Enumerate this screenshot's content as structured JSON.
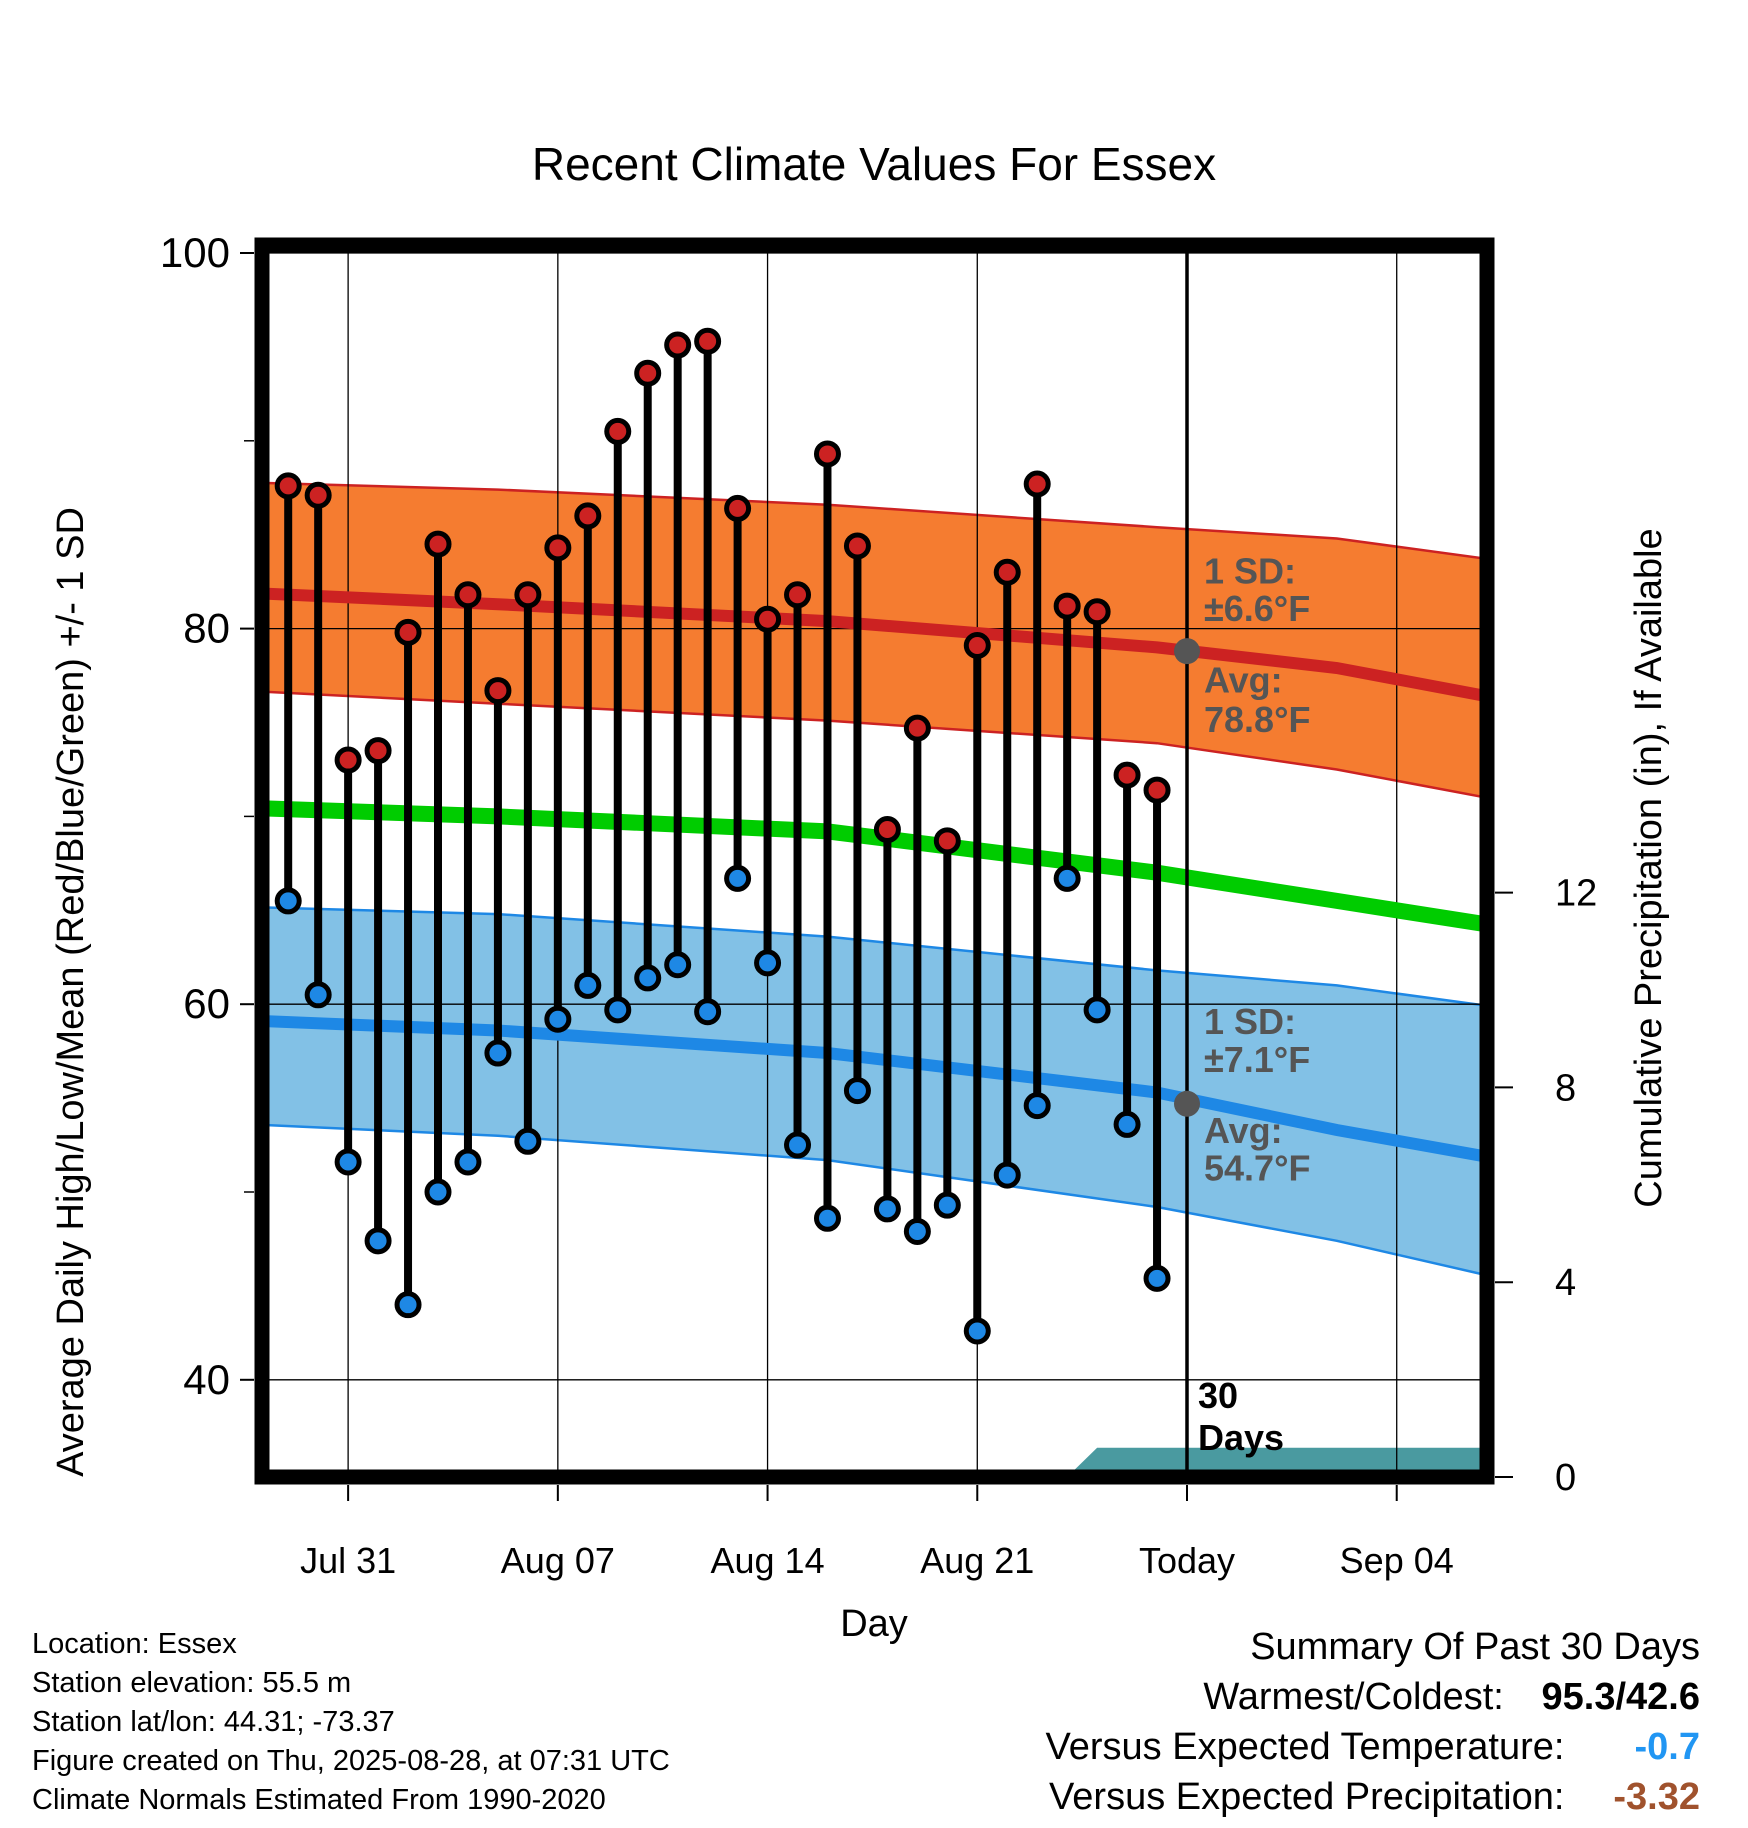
{
  "chart_data": {
    "type": "line",
    "title": "Recent Climate Values For Essex",
    "xlabel": "Day",
    "ylabel": "Average Daily High/Low/Mean (Red/Blue/Green) +/- 1 SD",
    "y2label": "Cumulative Precipitation (in), If Available",
    "ylim": [
      35,
      100
    ],
    "y2lim": [
      0,
      18.8
    ],
    "y_ticks": [
      40,
      60,
      80,
      100
    ],
    "y_minor_ticks": [
      50,
      70,
      90
    ],
    "y2_ticks": [
      0,
      4,
      8,
      12
    ],
    "x_range_days": [
      -34,
      11
    ],
    "x_ticks": [
      {
        "day": -28,
        "label": "Jul 31"
      },
      {
        "day": -21,
        "label": "Aug 07"
      },
      {
        "day": -14,
        "label": "Aug 14"
      },
      {
        "day": -7,
        "label": "Aug 21"
      },
      {
        "day": 0,
        "label": "Today"
      },
      {
        "day": 7,
        "label": "Sep 04"
      }
    ],
    "grid": true,
    "today_marker": {
      "day": 0,
      "label_lines": [
        "30",
        "Days"
      ]
    },
    "observed": {
      "days": [
        -30,
        -29,
        -28,
        -27,
        -26,
        -25,
        -24,
        -23,
        -22,
        -21,
        -20,
        -19,
        -18,
        -17,
        -16,
        -15,
        -14,
        -13,
        -12,
        -11,
        -10,
        -9,
        -8,
        -7,
        -6,
        -5,
        -4,
        -3,
        -2,
        -1
      ],
      "high": [
        87.6,
        87.1,
        73.0,
        73.5,
        79.8,
        84.5,
        81.8,
        76.7,
        81.8,
        84.3,
        86.0,
        90.5,
        93.6,
        95.1,
        95.3,
        86.4,
        80.5,
        81.8,
        89.3,
        84.4,
        69.3,
        74.7,
        68.7,
        79.1,
        83.0,
        87.7,
        81.2,
        80.9,
        72.2,
        71.4
      ],
      "low": [
        65.5,
        60.5,
        51.6,
        47.4,
        44.0,
        50.0,
        51.6,
        57.4,
        52.7,
        59.2,
        61.0,
        59.7,
        61.4,
        62.1,
        59.6,
        66.7,
        62.2,
        52.5,
        48.6,
        55.4,
        49.1,
        47.9,
        49.3,
        42.6,
        50.9,
        54.6,
        66.7,
        59.7,
        53.6,
        45.4
      ]
    },
    "normals": {
      "days": [
        -34,
        -23,
        -12,
        -1,
        5,
        11
      ],
      "high_avg": [
        82.1,
        81.3,
        80.4,
        79.0,
        77.9,
        76.1
      ],
      "high_upper": [
        87.9,
        87.4,
        86.6,
        85.4,
        84.8,
        83.5
      ],
      "high_lower": [
        76.9,
        76.0,
        75.1,
        73.9,
        72.5,
        70.7
      ],
      "high_sd_label": "±6.6°F",
      "high_avg_label": "78.8°F",
      "mean_avg": [
        70.6,
        70.0,
        69.2,
        67.0,
        65.5,
        64.0
      ],
      "low_avg": [
        59.3,
        58.6,
        57.4,
        55.3,
        53.3,
        51.6
      ],
      "low_upper": [
        65.3,
        64.8,
        63.6,
        61.8,
        61.0,
        59.7
      ],
      "low_lower": [
        53.8,
        53.0,
        51.7,
        49.2,
        47.4,
        45.2
      ],
      "low_sd_label": "±7.1°F",
      "low_avg_label": "54.7°F",
      "today_high_avg": 78.8,
      "today_low_avg": 54.7
    },
    "precipitation": {
      "expected_days": [
        -4,
        -3,
        11
      ],
      "expected_cumulative": [
        0,
        0.6,
        0.6
      ]
    },
    "annotations": {
      "sd_prefix": "1 SD:",
      "avg_prefix": "Avg:"
    },
    "colors": {
      "high": "#cc2222",
      "high_band": "#f57c30",
      "low": "#1e88e5",
      "low_band": "#82c1e6",
      "mean": "#00cc00",
      "precip": "#4a9aa0",
      "annotation": "#555555"
    }
  },
  "info": {
    "location": "Location: Essex",
    "elevation": "Station elevation: 55.5 m",
    "latlon": "Station lat/lon: 44.31; -73.37",
    "created": "Figure created on Thu, 2025-08-28, at 07:31 UTC",
    "normals": "Climate Normals Estimated From 1990-2020"
  },
  "summary": {
    "title": "Summary Of Past 30 Days",
    "warmest_label": "Warmest/Coldest:",
    "warmest_value": "95.3/42.6",
    "temp_label": "Versus Expected Temperature:",
    "temp_value": "-0.7",
    "temp_color": "#2196f3",
    "precip_label": "Versus Expected Precipitation:",
    "precip_value": "-3.32",
    "precip_color": "#a0522d"
  }
}
